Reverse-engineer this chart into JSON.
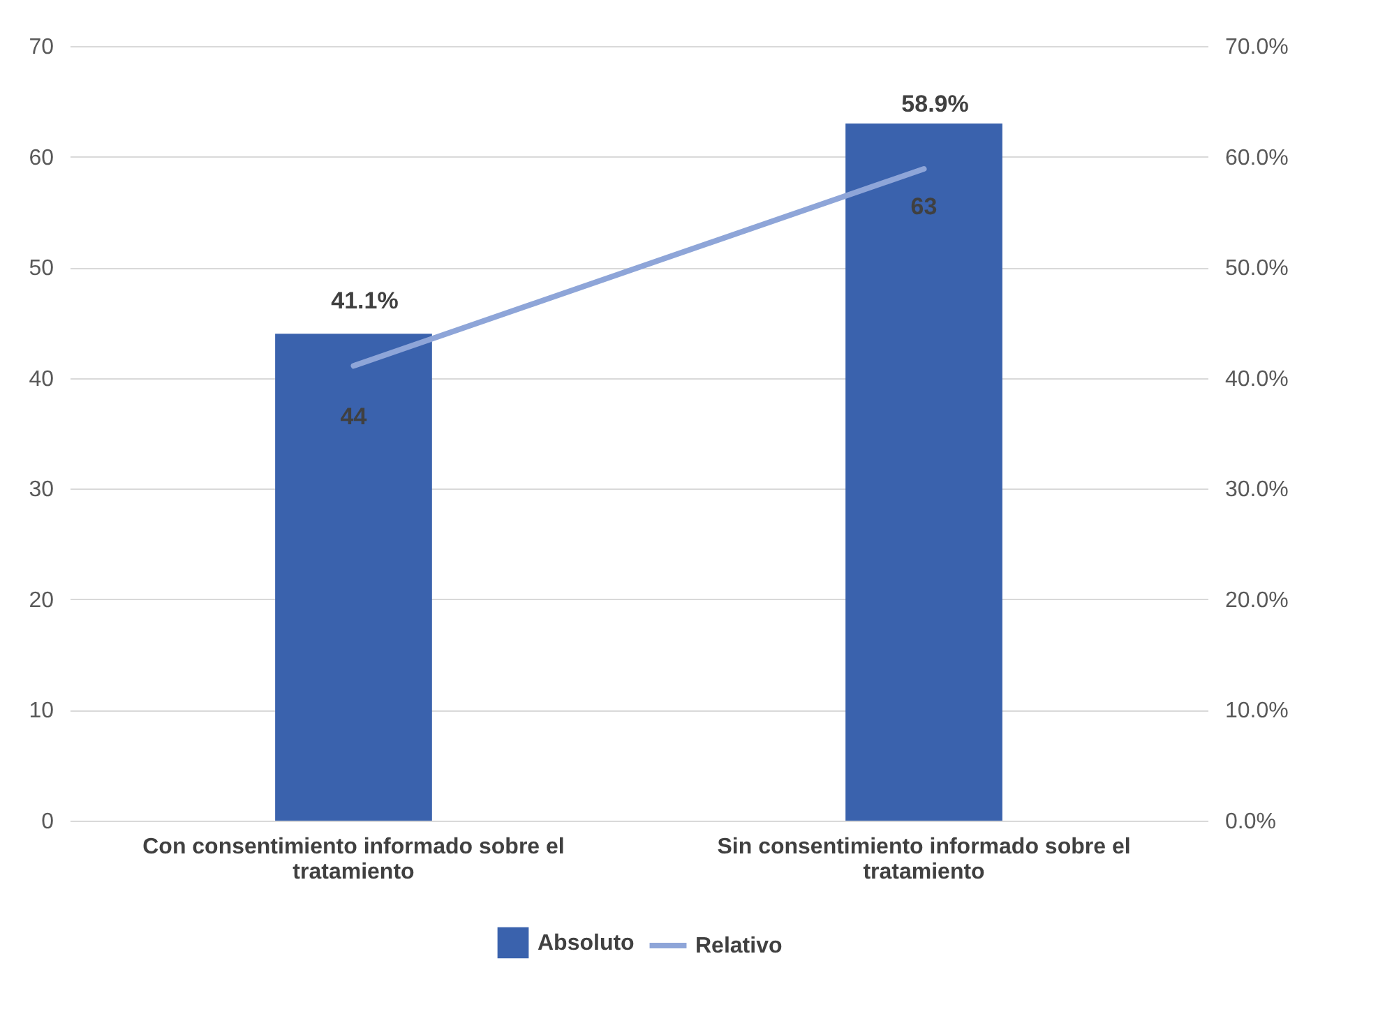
{
  "chart_data": {
    "type": "bar",
    "categories": [
      "Con consentimiento informado sobre el tratamiento",
      "Sin consentimiento informado sobre el tratamiento"
    ],
    "series": [
      {
        "name": "Absoluto",
        "color": "#3a62ad",
        "values": [
          44,
          63
        ],
        "value_labels": [
          "44",
          "63"
        ]
      },
      {
        "name": "Relativo",
        "type": "line",
        "axis": "y2",
        "color": "#8ea5d8",
        "values": [
          41.1,
          58.9
        ],
        "value_labels": [
          "41.1%",
          "58.9%"
        ]
      }
    ],
    "ylim": [
      0,
      70
    ],
    "yticks": [
      0,
      10,
      20,
      30,
      40,
      50,
      60,
      70
    ],
    "y2lim": [
      0,
      70
    ],
    "y2ticks": [
      {
        "value": 0,
        "label": "0.0%"
      },
      {
        "value": 10,
        "label": "10.0%"
      },
      {
        "value": 20,
        "label": "20.0%"
      },
      {
        "value": 30,
        "label": "30.0%"
      },
      {
        "value": 40,
        "label": "40.0%"
      },
      {
        "value": 50,
        "label": "50.0%"
      },
      {
        "value": 60,
        "label": "60.0%"
      },
      {
        "value": 70,
        "label": "70.0%"
      }
    ],
    "grid": "y",
    "legend": "bottom"
  }
}
